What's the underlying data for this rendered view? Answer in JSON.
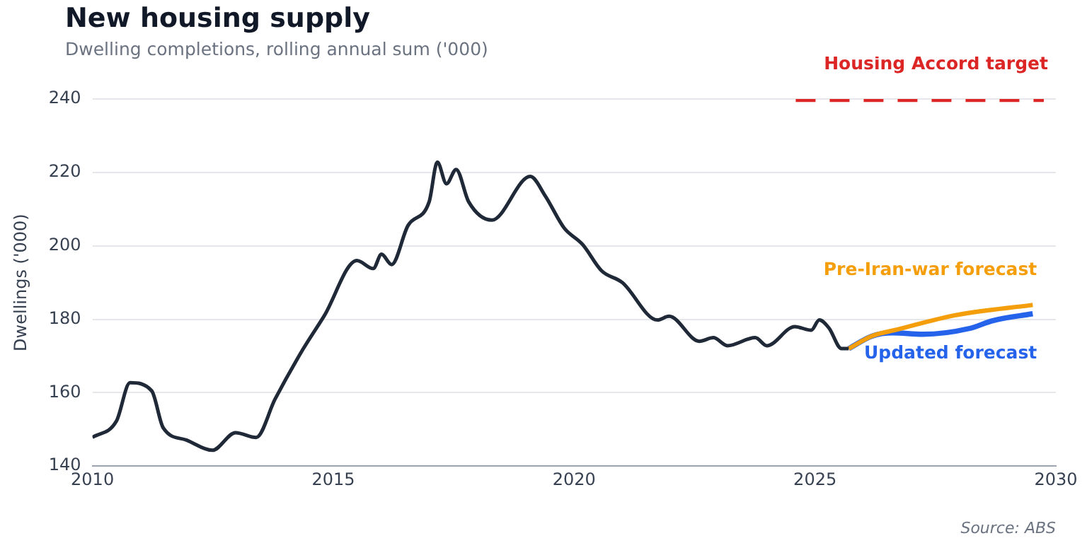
{
  "chart_data": {
    "type": "line",
    "title": "New housing supply",
    "subtitle": "Dwelling completions, rolling annual sum ('000)",
    "ylabel": "Dwellings ('000)",
    "xlim": [
      2010,
      2030
    ],
    "xticks": [
      2010,
      2015,
      2020,
      2025,
      2030
    ],
    "ylim": [
      140,
      240
    ],
    "yticks": [
      140,
      160,
      180,
      200,
      220,
      240
    ],
    "grid": "y",
    "legend": false,
    "marker": "none",
    "series": [
      {
        "color": "#1f2937",
        "x": [
          2010.0,
          2010.5,
          2010.78,
          2011.23,
          2011.47,
          2011.95,
          2012.49,
          2012.97,
          2013.4,
          2013.79,
          2014.37,
          2014.81,
          2015.49,
          2015.83,
          2016.0,
          2016.21,
          2016.55,
          2016.99,
          2017.16,
          2017.35,
          2017.55,
          2017.81,
          2018.29,
          2019.09,
          2019.4,
          2019.79,
          2020.18,
          2020.57,
          2021.0,
          2021.73,
          2021.97,
          2022.6,
          2022.89,
          2023.18,
          2023.76,
          2024.0,
          2024.58,
          2024.92,
          2025.09,
          2025.29,
          2025.55,
          2025.7
        ],
        "values": [
          147.8,
          152.3,
          162.7,
          160.5,
          150.4,
          147.1,
          144.3,
          149.1,
          147.8,
          158.2,
          171.8,
          180.9,
          196.0,
          193.8,
          197.7,
          194.9,
          205.5,
          212.0,
          222.8,
          216.9,
          220.8,
          212.0,
          207.0,
          218.9,
          213.6,
          204.9,
          200.3,
          193.2,
          190.0,
          179.8,
          180.8,
          174.0,
          175.0,
          172.8,
          175.0,
          172.8,
          178.0,
          177.0,
          179.8,
          177.6,
          172.0,
          172.0
        ]
      },
      {
        "name": "Pre-Iran-war forecast",
        "color": "#f59e0b",
        "x": [
          2025.7,
          2026.18,
          2026.71,
          2027.92,
          2029.52
        ],
        "values": [
          172.0,
          175.4,
          177.2,
          181.1,
          183.9
        ]
      },
      {
        "name": "Updated forecast",
        "color": "#2563eb",
        "x": [
          2025.7,
          2026.18,
          2026.61,
          2027.24,
          2028.21,
          2028.69,
          2029.52
        ],
        "values": [
          172.0,
          175.4,
          176.3,
          175.9,
          177.5,
          179.6,
          181.5
        ]
      },
      {
        "name": "Housing Accord target",
        "color": "#dc2626",
        "line_style": "dashed",
        "x": [
          2024.6,
          2029.75
        ],
        "values": [
          240,
          240
        ]
      }
    ],
    "annotations": [
      "Source: ABS"
    ]
  }
}
